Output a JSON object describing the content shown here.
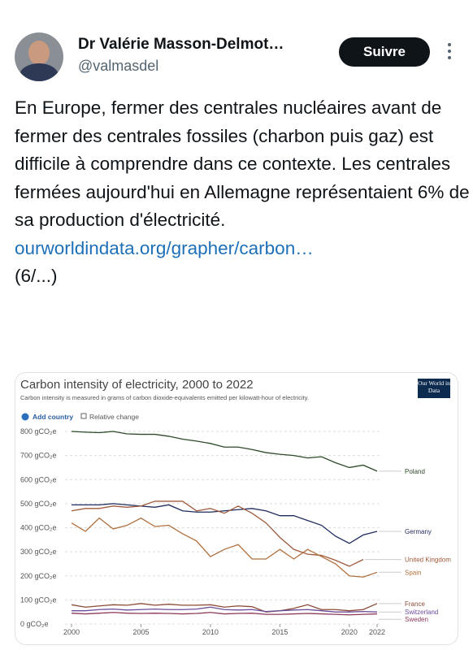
{
  "tweet": {
    "name": "Dr Valérie Masson-Delmot…",
    "handle": "@valmasdel",
    "follow": "Suivre",
    "text": "En Europe, fermer des centrales nucléaires avant de fermer des centrales fossiles (charbon puis gaz) est difficile à comprendre dans ce contexte. Les centrales fermées aujourd'hui en Allemagne représentaient 6% de sa production d'électricité.",
    "link": "ourworldindata.org/grapher/carbon…",
    "thread": "(6/...)"
  },
  "chart_data": {
    "type": "line",
    "title": "Carbon intensity of electricity, 2000 to 2022",
    "subtitle": "Carbon intensity is measured in grams of carbon dioxide-equivalents emitted per kilowatt-hour of electricity.",
    "logo": "Our World in Data",
    "add_country": "Add country",
    "relative_change": "Relative change",
    "x": [
      2000,
      2001,
      2002,
      2003,
      2004,
      2005,
      2006,
      2007,
      2008,
      2009,
      2010,
      2011,
      2012,
      2013,
      2014,
      2015,
      2016,
      2017,
      2018,
      2019,
      2020,
      2021,
      2022
    ],
    "xlim": [
      2000,
      2022
    ],
    "xticks": [
      2000,
      2005,
      2010,
      2015,
      2020,
      2022
    ],
    "ylim": [
      0,
      800
    ],
    "yticks": [
      {
        "value": 0,
        "label": "0 gCO₂e"
      },
      {
        "value": 100,
        "label": "100 gCO₂e"
      },
      {
        "value": 200,
        "label": "200 gCO₂e"
      },
      {
        "value": 300,
        "label": "300 gCO₂e"
      },
      {
        "value": 400,
        "label": "400 gCO₂e"
      },
      {
        "value": 500,
        "label": "500 gCO₂e"
      },
      {
        "value": 600,
        "label": "600 gCO₂e"
      },
      {
        "value": 700,
        "label": "700 gCO₂e"
      },
      {
        "value": 800,
        "label": "800 gCO₂e"
      }
    ],
    "grid": true,
    "series": [
      {
        "name": "Poland",
        "color": "#2e4a2a",
        "values": [
          800,
          797,
          795,
          800,
          790,
          788,
          788,
          780,
          768,
          760,
          750,
          735,
          735,
          725,
          712,
          705,
          700,
          690,
          695,
          670,
          650,
          660,
          635
        ]
      },
      {
        "name": "Germany",
        "color": "#1f2b5c",
        "values": [
          495,
          495,
          495,
          500,
          495,
          490,
          485,
          495,
          470,
          465,
          465,
          470,
          475,
          480,
          470,
          450,
          450,
          430,
          410,
          365,
          335,
          370,
          385
        ]
      },
      {
        "name": "United Kingdom",
        "color": "#a05a3c",
        "values": [
          470,
          480,
          480,
          490,
          485,
          490,
          510,
          510,
          510,
          470,
          480,
          460,
          490,
          460,
          420,
          360,
          310,
          290,
          285,
          265,
          240,
          268,
          null
        ]
      },
      {
        "name": "Spain",
        "color": "#b0703f",
        "values": [
          420,
          385,
          440,
          395,
          410,
          440,
          405,
          410,
          375,
          345,
          280,
          310,
          330,
          270,
          270,
          310,
          270,
          310,
          280,
          250,
          200,
          195,
          215
        ]
      },
      {
        "name": "France",
        "color": "#8b4a36",
        "values": [
          80,
          70,
          75,
          80,
          78,
          85,
          78,
          82,
          78,
          78,
          80,
          70,
          75,
          72,
          50,
          55,
          65,
          80,
          60,
          60,
          55,
          60,
          85
        ]
      },
      {
        "name": "Switzerland",
        "color": "#6b4c9a",
        "values": [
          55,
          55,
          60,
          62,
          58,
          60,
          62,
          60,
          60,
          62,
          70,
          60,
          58,
          60,
          52,
          55,
          58,
          60,
          55,
          50,
          50,
          52,
          50
        ]
      },
      {
        "name": "Sweden",
        "color": "#8c3a5c",
        "values": [
          45,
          42,
          45,
          48,
          45,
          44,
          45,
          44,
          42,
          44,
          48,
          42,
          44,
          45,
          40,
          40,
          42,
          44,
          42,
          40,
          38,
          40,
          42
        ]
      }
    ]
  }
}
